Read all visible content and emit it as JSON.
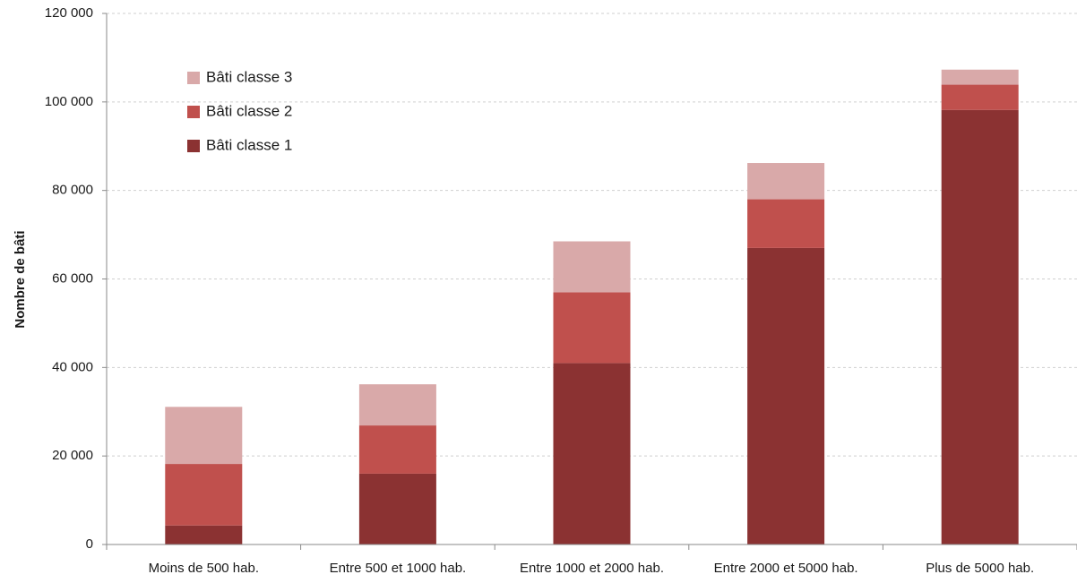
{
  "chart_data": {
    "type": "bar",
    "stacked": true,
    "title": "",
    "xlabel": "",
    "ylabel": "Nombre de bâti",
    "ylim": [
      0,
      120000
    ],
    "yticks": [
      0,
      20000,
      40000,
      60000,
      80000,
      100000,
      120000
    ],
    "ytick_labels": [
      "0",
      "20 000",
      "40 000",
      "60 000",
      "80 000",
      "100 000",
      "120 000"
    ],
    "grid": "horizontal dashed",
    "legend_position": "top-left",
    "categories": [
      "Moins de 500 hab.",
      "Entre 500 et 1000 hab.",
      "Entre 1000 et 2000 hab.",
      "Entre 2000 et 5000 hab.",
      "Plus de 5000 hab."
    ],
    "series": [
      {
        "name": "Bâti classe 1",
        "color": "#8b3232",
        "values": [
          4300,
          16000,
          41000,
          67000,
          98200
        ]
      },
      {
        "name": "Bâti classe 2",
        "color": "#c0504d",
        "values": [
          13900,
          10900,
          16000,
          11000,
          5700
        ]
      },
      {
        "name": "Bâti classe 3",
        "color": "#d9a9a9",
        "values": [
          12900,
          9300,
          11500,
          8200,
          3400
        ]
      }
    ],
    "legend_order": [
      "Bâti classe 3",
      "Bâti classe 2",
      "Bâti classe 1"
    ]
  }
}
